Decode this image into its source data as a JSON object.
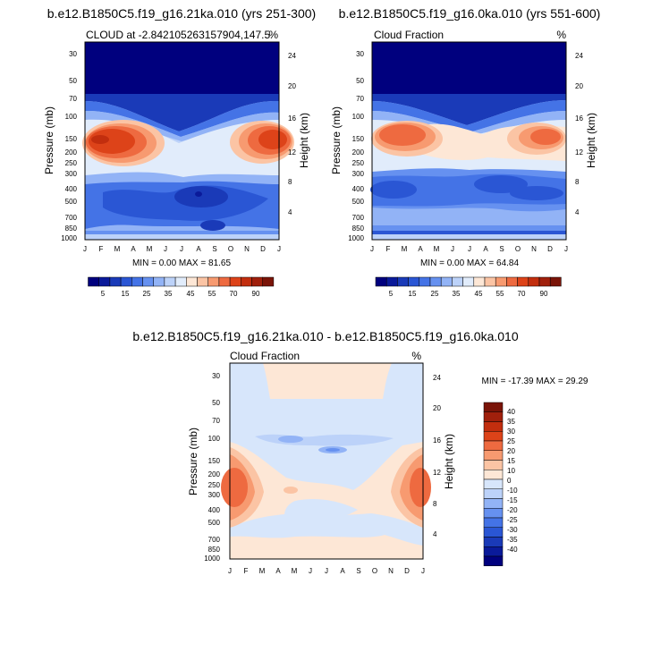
{
  "colors": {
    "seq": [
      "#00007e",
      "#0a1a9a",
      "#1a3ab8",
      "#2a56d4",
      "#4473e6",
      "#6691f0",
      "#92b3f6",
      "#bcd2f9",
      "#e1ecfb",
      "#fde7d6",
      "#fbc4a4",
      "#f79a70",
      "#ee6a40",
      "#dd4319",
      "#c22e0e",
      "#a0200c",
      "#7a1408"
    ],
    "diff": [
      "#00007e",
      "#0a1a9a",
      "#1a3ab8",
      "#2a56d4",
      "#4473e6",
      "#6691f0",
      "#92b3f6",
      "#bcd2f9",
      "#d7e6fb",
      "#fde7d6",
      "#fbc4a4",
      "#f79a70",
      "#ee6a40",
      "#dd4319",
      "#c22e0e",
      "#a0200c",
      "#7a1408"
    ]
  },
  "chart_data": [
    {
      "type": "heatmap",
      "id": "panel1",
      "title": "b.e12.B1850C5.f19_g16.21ka.010 (yrs 251-300)",
      "left_label": "CLOUD at -2.842105263157904,147.5",
      "right_label": "%",
      "xlabel": "",
      "ylabel": "Pressure (mb)",
      "y2label": "Height (km)",
      "x_ticks": [
        "J",
        "F",
        "M",
        "A",
        "M",
        "J",
        "J",
        "A",
        "S",
        "O",
        "N",
        "D",
        "J"
      ],
      "y_ticks": [
        "30",
        "50",
        "70",
        "100",
        "150",
        "200",
        "250",
        "300",
        "400",
        "500",
        "700",
        "850",
        "1000"
      ],
      "y2_ticks": [
        "24",
        "20",
        "16",
        "12",
        "8",
        "4"
      ],
      "stats": "MIN =  0.00 MAX = 81.65",
      "min": 0.0,
      "max": 81.65
    },
    {
      "type": "heatmap",
      "id": "panel2",
      "title": "b.e12.B1850C5.f19_g16.0ka.010 (yrs 551-600)",
      "left_label": "Cloud Fraction",
      "right_label": "%",
      "xlabel": "",
      "ylabel": "Pressure (mb)",
      "y2label": "Height (km)",
      "x_ticks": [
        "J",
        "F",
        "M",
        "A",
        "M",
        "J",
        "J",
        "A",
        "S",
        "O",
        "N",
        "D",
        "J"
      ],
      "y_ticks": [
        "30",
        "50",
        "70",
        "100",
        "150",
        "200",
        "250",
        "300",
        "400",
        "500",
        "700",
        "850",
        "1000"
      ],
      "y2_ticks": [
        "24",
        "20",
        "16",
        "12",
        "8",
        "4"
      ],
      "stats": "MIN =  0.00 MAX = 64.84",
      "min": 0.0,
      "max": 64.84
    },
    {
      "type": "heatmap",
      "id": "panel3",
      "title": "b.e12.B1850C5.f19_g16.21ka.010 - b.e12.B1850C5.f19_g16.0ka.010",
      "left_label": "Cloud Fraction",
      "right_label": "%",
      "xlabel": "",
      "ylabel": "Pressure (mb)",
      "y2label": "Height (km)",
      "x_ticks": [
        "J",
        "F",
        "M",
        "A",
        "M",
        "J",
        "J",
        "A",
        "S",
        "O",
        "N",
        "D",
        "J"
      ],
      "y_ticks": [
        "30",
        "50",
        "70",
        "100",
        "150",
        "200",
        "250",
        "300",
        "400",
        "500",
        "700",
        "850",
        "1000"
      ],
      "y2_ticks": [
        "24",
        "20",
        "16",
        "12",
        "8",
        "4"
      ],
      "stats": "MIN = -17.39 MAX =  29.29",
      "min": -17.39,
      "max": 29.29
    }
  ],
  "colorbars": {
    "sequential": {
      "labels": [
        "5",
        "15",
        "25",
        "35",
        "45",
        "55",
        "70",
        "90"
      ]
    },
    "difference": {
      "labels": [
        "40",
        "35",
        "30",
        "25",
        "20",
        "15",
        "10",
        "0",
        "-10",
        "-15",
        "-20",
        "-25",
        "-30",
        "-35",
        "-40"
      ]
    }
  }
}
